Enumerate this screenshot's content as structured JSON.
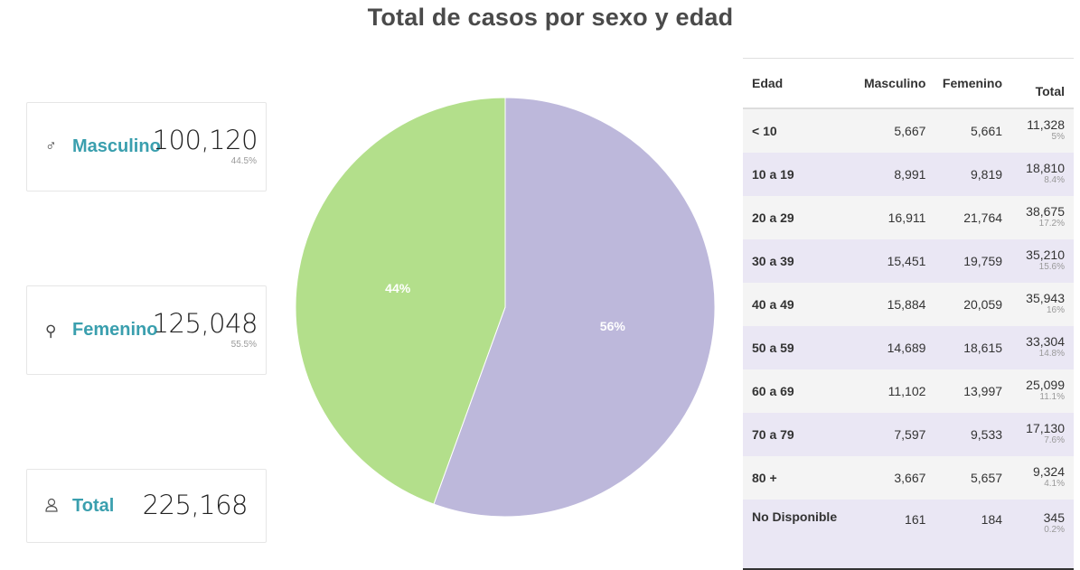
{
  "title": "Total de casos por sexo y edad",
  "cards": {
    "masculino": {
      "label": "Masculino",
      "value": "100,120",
      "pct": "44.5%",
      "icon": "male-icon"
    },
    "femenino": {
      "label": "Femenino",
      "value": "125,048",
      "pct": "55.5%",
      "icon": "female-icon"
    },
    "total": {
      "label": "Total",
      "value": "225,168",
      "icon": "person-icon"
    }
  },
  "colors": {
    "masculino": "#b3df8b",
    "femenino": "#bdb8db",
    "accent": "#3a9fae"
  },
  "table": {
    "headers": [
      "Edad",
      "Masculino",
      "Femenino",
      "Total"
    ],
    "rows": [
      {
        "edad": "< 10",
        "m": "5,667",
        "f": "5,661",
        "total": "11,328",
        "pct": "5%"
      },
      {
        "edad": "10 a 19",
        "m": "8,991",
        "f": "9,819",
        "total": "18,810",
        "pct": "8.4%"
      },
      {
        "edad": "20 a 29",
        "m": "16,911",
        "f": "21,764",
        "total": "38,675",
        "pct": "17.2%"
      },
      {
        "edad": "30 a 39",
        "m": "15,451",
        "f": "19,759",
        "total": "35,210",
        "pct": "15.6%"
      },
      {
        "edad": "40 a 49",
        "m": "15,884",
        "f": "20,059",
        "total": "35,943",
        "pct": "16%"
      },
      {
        "edad": "50 a 59",
        "m": "14,689",
        "f": "18,615",
        "total": "33,304",
        "pct": "14.8%"
      },
      {
        "edad": "60 a 69",
        "m": "11,102",
        "f": "13,997",
        "total": "25,099",
        "pct": "11.1%"
      },
      {
        "edad": "70 a 79",
        "m": "7,597",
        "f": "9,533",
        "total": "17,130",
        "pct": "7.6%"
      },
      {
        "edad": "80 +",
        "m": "3,667",
        "f": "5,657",
        "total": "9,324",
        "pct": "4.1%"
      },
      {
        "edad": "No Disponible",
        "m": "161",
        "f": "184",
        "total": "345",
        "pct": "0.2%"
      }
    ]
  },
  "chart_data": {
    "type": "pie",
    "slices": [
      {
        "name": "Femenino",
        "value": 125048,
        "label": "56%",
        "color": "#bdb8db"
      },
      {
        "name": "Masculino",
        "value": 100120,
        "label": "44%",
        "color": "#b3df8b"
      }
    ]
  }
}
